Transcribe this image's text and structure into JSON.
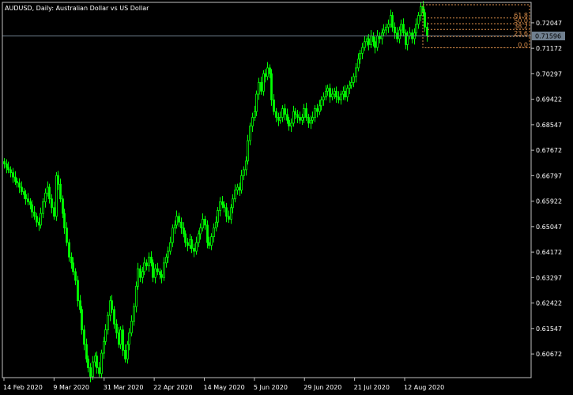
{
  "window": {
    "symbol": "AUDUSD",
    "timeframe": "Daily",
    "description": "Australian Dollar vs US Dollar",
    "title": "AUDUSD, Daily:  Australian Dollar vs US Dollar"
  },
  "colors": {
    "background": "#000000",
    "candle": "#00ff00",
    "axis": "#ffffff",
    "current_price_line": "#708090",
    "fib": "#d98d4a"
  },
  "chart_data": {
    "type": "candlestick",
    "title": "AUDUSD, Daily:  Australian Dollar vs US Dollar",
    "ylim": [
      0.5986,
      0.7275
    ],
    "y_ticks": [
      "0.72047",
      "0.71172",
      "0.70297",
      "0.69422",
      "0.68547",
      "0.67672",
      "0.66797",
      "0.65922",
      "0.65047",
      "0.64172",
      "0.63297",
      "0.62422",
      "0.61547",
      "0.60672"
    ],
    "x_tick_labels": [
      "14 Feb 2020",
      "9 Mar 2020",
      "31 Mar 2020",
      "22 Apr 2020",
      "14 May 2020",
      "5 Jun 2020",
      "29 Jun 2020",
      "21 Jul 2020",
      "12 Aug 2020"
    ],
    "current_price": "0.71596",
    "fibonacci": {
      "levels": [
        "61.8",
        "50.0",
        "38.2",
        "23.6",
        "0.0"
      ],
      "prices": [
        0.72213,
        0.72017,
        0.71822,
        0.7158,
        0.7119
      ]
    },
    "closes": [
      0.672,
      0.6708,
      0.67,
      0.669,
      0.6675,
      0.666,
      0.6655,
      0.664,
      0.6625,
      0.6615,
      0.66,
      0.659,
      0.658,
      0.6555,
      0.654,
      0.652,
      0.651,
      0.655,
      0.659,
      0.662,
      0.664,
      0.66,
      0.657,
      0.654,
      0.668,
      0.665,
      0.66,
      0.655,
      0.65,
      0.645,
      0.64,
      0.638,
      0.635,
      0.632,
      0.625,
      0.622,
      0.615,
      0.61,
      0.605,
      0.602,
      0.599,
      0.604,
      0.606,
      0.602,
      0.6,
      0.607,
      0.611,
      0.615,
      0.62,
      0.625,
      0.622,
      0.617,
      0.614,
      0.61,
      0.615,
      0.608,
      0.605,
      0.61,
      0.614,
      0.618,
      0.623,
      0.63,
      0.636,
      0.633,
      0.635,
      0.638,
      0.637,
      0.64,
      0.638,
      0.633,
      0.636,
      0.635,
      0.634,
      0.633,
      0.638,
      0.64,
      0.642,
      0.645,
      0.65,
      0.651,
      0.654,
      0.652,
      0.65,
      0.648,
      0.645,
      0.644,
      0.646,
      0.643,
      0.642,
      0.645,
      0.648,
      0.65,
      0.653,
      0.651,
      0.645,
      0.644,
      0.647,
      0.65,
      0.652,
      0.656,
      0.659,
      0.658,
      0.657,
      0.654,
      0.653,
      0.657,
      0.66,
      0.663,
      0.664,
      0.663,
      0.668,
      0.67,
      0.673,
      0.68,
      0.685,
      0.688,
      0.69,
      0.696,
      0.7,
      0.697,
      0.703,
      0.702,
      0.705,
      0.703,
      0.694,
      0.69,
      0.688,
      0.687,
      0.688,
      0.691,
      0.689,
      0.687,
      0.685,
      0.686,
      0.69,
      0.689,
      0.688,
      0.687,
      0.688,
      0.691,
      0.688,
      0.686,
      0.687,
      0.688,
      0.691,
      0.69,
      0.692,
      0.694,
      0.695,
      0.697,
      0.698,
      0.695,
      0.696,
      0.697,
      0.695,
      0.694,
      0.696,
      0.697,
      0.695,
      0.698,
      0.699,
      0.7,
      0.702,
      0.705,
      0.708,
      0.71,
      0.712,
      0.714,
      0.715,
      0.713,
      0.716,
      0.714,
      0.712,
      0.716,
      0.715,
      0.717,
      0.718,
      0.719,
      0.72,
      0.723,
      0.719,
      0.717,
      0.715,
      0.718,
      0.72,
      0.717,
      0.713,
      0.716,
      0.717,
      0.715,
      0.717,
      0.72,
      0.723,
      0.726,
      0.724,
      0.719,
      0.716
    ]
  }
}
